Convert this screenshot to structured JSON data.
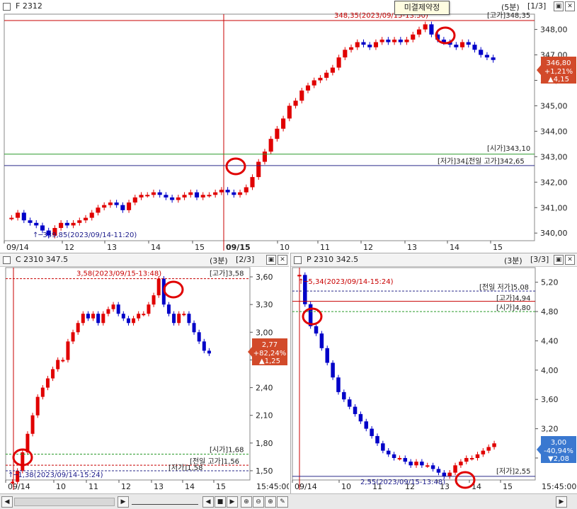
{
  "colors": {
    "up": "#e00000",
    "down": "#0000c8",
    "grid": "#d5d5d5",
    "label_red": "#c80000",
    "price_box": "#d24a2a",
    "price_box_blue": "#3a78d0"
  },
  "top": {
    "title": "F 2312",
    "tooltip": "미결제약정",
    "period": "(5분)",
    "page": "[1/3]",
    "ticks": [
      "348,00",
      "347,00",
      "346,00",
      "345,00",
      "344,00",
      "343,00",
      "342,00",
      "341,00",
      "340,00"
    ],
    "xticks": [
      "09/14",
      "12",
      "13",
      "14",
      "15",
      "09/15",
      "10",
      "11",
      "12",
      "13",
      "14",
      "15"
    ],
    "high_note": "348,35(2023/09/15-13:50)",
    "low_note": "339,85(2023/09/14-11:20)",
    "ref": {
      "high": "[고가]348,35",
      "open": "[시가]343,10",
      "low": "[저가]34...",
      "prev_high": "[전일 고가]342,65"
    },
    "price": {
      "value": "346,80",
      "pct": "+1,21%",
      "chg": "▲4,15"
    },
    "time_label": ""
  },
  "left": {
    "title": "C 2310 347.5",
    "period": "(3분)",
    "page": "[2/3]",
    "ticks": [
      "3,60",
      "3,30",
      "3,00",
      "2,70",
      "2,40",
      "2,10",
      "1,80",
      "1,50"
    ],
    "xticks": [
      "09/14",
      "10",
      "11",
      "12",
      "13",
      "14",
      "15"
    ],
    "time_label": "15:45:00",
    "high_note": "3,58(2023/09/15-13:48)",
    "low_note": "1,38(2023/09/14-15:24)",
    "ref": {
      "high": "[고가]3,58",
      "open": "[시가]1,68",
      "prev_high": "[전일 고가]1,56",
      "low": "[저가]1,58"
    },
    "price": {
      "value": "2,77",
      "pct": "+82,24%",
      "chg": "▲1,25"
    }
  },
  "right": {
    "title": "P 2310 342.5",
    "period": "(3분)",
    "page": "[3/3]",
    "ticks": [
      "5,20",
      "4,80",
      "4,40",
      "4,00",
      "3,60",
      "3,20",
      "2,80"
    ],
    "xticks": [
      "09/14",
      "10",
      "11",
      "12",
      "13",
      "14",
      "15"
    ],
    "time_label": "15:45:00",
    "high_note": "5,34(2023/09/14-15:24)",
    "low_note": "2,55(2023/09/15-13:48)",
    "ref": {
      "prev_low": "[전일 저가]5,08",
      "high": "[고가]4,94",
      "open": "[시가]4,80",
      "low": "[저가]2,55"
    },
    "price": {
      "value": "3,00",
      "pct": "-40,94%",
      "chg": "▼2,08"
    }
  },
  "top_time": "15:45:00",
  "chart_data": [
    {
      "type": "candlestick",
      "name": "F 2312",
      "ylim": [
        339.7,
        348.6
      ],
      "path": [
        340.6,
        340.8,
        340.5,
        340.4,
        340.3,
        340.1,
        339.9,
        340.2,
        340.4,
        340.3,
        340.4,
        340.5,
        340.6,
        340.8,
        341.0,
        341.1,
        341.2,
        341.1,
        340.9,
        341.2,
        341.4,
        341.5,
        341.5,
        341.6,
        341.5,
        341.4,
        341.3,
        341.4,
        341.5,
        341.6,
        341.4,
        341.5,
        341.5,
        341.6,
        341.7,
        341.6,
        341.5,
        341.6,
        341.8,
        342.2,
        342.8,
        343.2,
        343.7,
        344.1,
        344.5,
        345.0,
        345.2,
        345.6,
        345.8,
        346.0,
        346.1,
        346.3,
        346.5,
        346.9,
        347.2,
        347.3,
        347.5,
        347.4,
        347.3,
        347.5,
        347.6,
        347.5,
        347.6,
        347.5,
        347.6,
        347.8,
        348.0,
        348.2,
        347.8,
        347.6,
        347.5,
        347.4,
        347.3,
        347.5,
        347.4,
        347.2,
        347.0,
        346.9,
        346.8
      ]
    },
    {
      "type": "candlestick",
      "name": "C 2310 347.5",
      "ylim": [
        1.4,
        3.7
      ],
      "path": [
        1.38,
        1.5,
        1.7,
        1.9,
        2.1,
        2.3,
        2.4,
        2.5,
        2.6,
        2.7,
        2.7,
        2.9,
        3.0,
        3.1,
        3.2,
        3.15,
        3.2,
        3.1,
        3.2,
        3.25,
        3.3,
        3.2,
        3.15,
        3.1,
        3.15,
        3.2,
        3.2,
        3.3,
        3.4,
        3.58,
        3.3,
        3.2,
        3.1,
        3.2,
        3.2,
        3.1,
        3.0,
        2.9,
        2.8,
        2.77
      ]
    },
    {
      "type": "candlestick",
      "name": "P 2310 342.5",
      "ylim": [
        2.5,
        5.4
      ],
      "path": [
        5.3,
        4.9,
        4.6,
        4.5,
        4.3,
        4.1,
        3.9,
        3.7,
        3.6,
        3.5,
        3.4,
        3.3,
        3.2,
        3.1,
        3.0,
        2.9,
        2.85,
        2.8,
        2.8,
        2.75,
        2.7,
        2.75,
        2.7,
        2.7,
        2.65,
        2.6,
        2.55,
        2.6,
        2.7,
        2.75,
        2.8,
        2.8,
        2.85,
        2.9,
        2.95,
        3.0
      ]
    }
  ]
}
